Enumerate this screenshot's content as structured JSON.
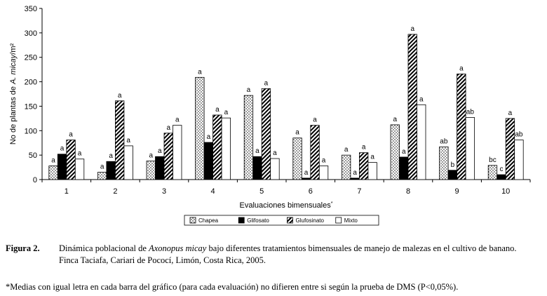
{
  "chart_data": {
    "type": "bar",
    "ylabel_prefix": "No de plantas de ",
    "ylabel_italic": "A. micay",
    "ylabel_suffix": "/m²",
    "xlabel": "Evaluaciones bimensuales",
    "xlabel_mark": "*",
    "ylim": [
      0,
      350
    ],
    "yticks": [
      "0",
      "50",
      "100",
      "150",
      "200",
      "250",
      "300",
      "350"
    ],
    "categories": [
      "1",
      "2",
      "3",
      "4",
      "5",
      "6",
      "7",
      "8",
      "9",
      "10"
    ],
    "series": [
      {
        "name": "Chapea",
        "pattern": "dotted",
        "values": [
          28,
          15,
          38,
          209,
          172,
          85,
          50,
          112,
          67,
          29
        ],
        "letters": [
          "a",
          "a",
          "a",
          "a",
          "a",
          "a",
          "a",
          "a",
          "ab",
          "bc"
        ]
      },
      {
        "name": "Glifosato",
        "pattern": "solid",
        "values": [
          52,
          37,
          47,
          76,
          47,
          3,
          3,
          46,
          19,
          10
        ],
        "letters": [
          "a",
          "a",
          "a",
          "a",
          "a",
          "a",
          "a",
          "a",
          "b",
          "c"
        ]
      },
      {
        "name": "Glufosinato",
        "pattern": "hatched",
        "values": [
          81,
          161,
          95,
          132,
          186,
          111,
          55,
          297,
          216,
          125
        ],
        "letters": [
          "a",
          "a",
          "a",
          "a",
          "a",
          "a",
          "a",
          "a",
          "a",
          "a"
        ]
      },
      {
        "name": "Mixto",
        "pattern": "open",
        "values": [
          42,
          69,
          111,
          126,
          43,
          28,
          35,
          153,
          127,
          81
        ],
        "letters": [
          "a",
          "a",
          "a",
          "a",
          "a",
          "a",
          "a",
          "a",
          "ab",
          "ab"
        ]
      }
    ],
    "grid": false,
    "legend_position": "bottom"
  },
  "caption": {
    "label": "Figura 2.",
    "text_before": "Dinámica poblacional de ",
    "species": "Axonopus micay",
    "text_after": " bajo diferentes tratamientos bimensuales de manejo de malezas en el cultivo de banano. Finca Taciafa, Cariari de Pococí, Limón, Costa Rica, 2005."
  },
  "footnote": "*Medias con igual letra en cada barra del gráfico (para cada evaluación) no difieren entre si según la prueba de DMS (P<0,05%)."
}
